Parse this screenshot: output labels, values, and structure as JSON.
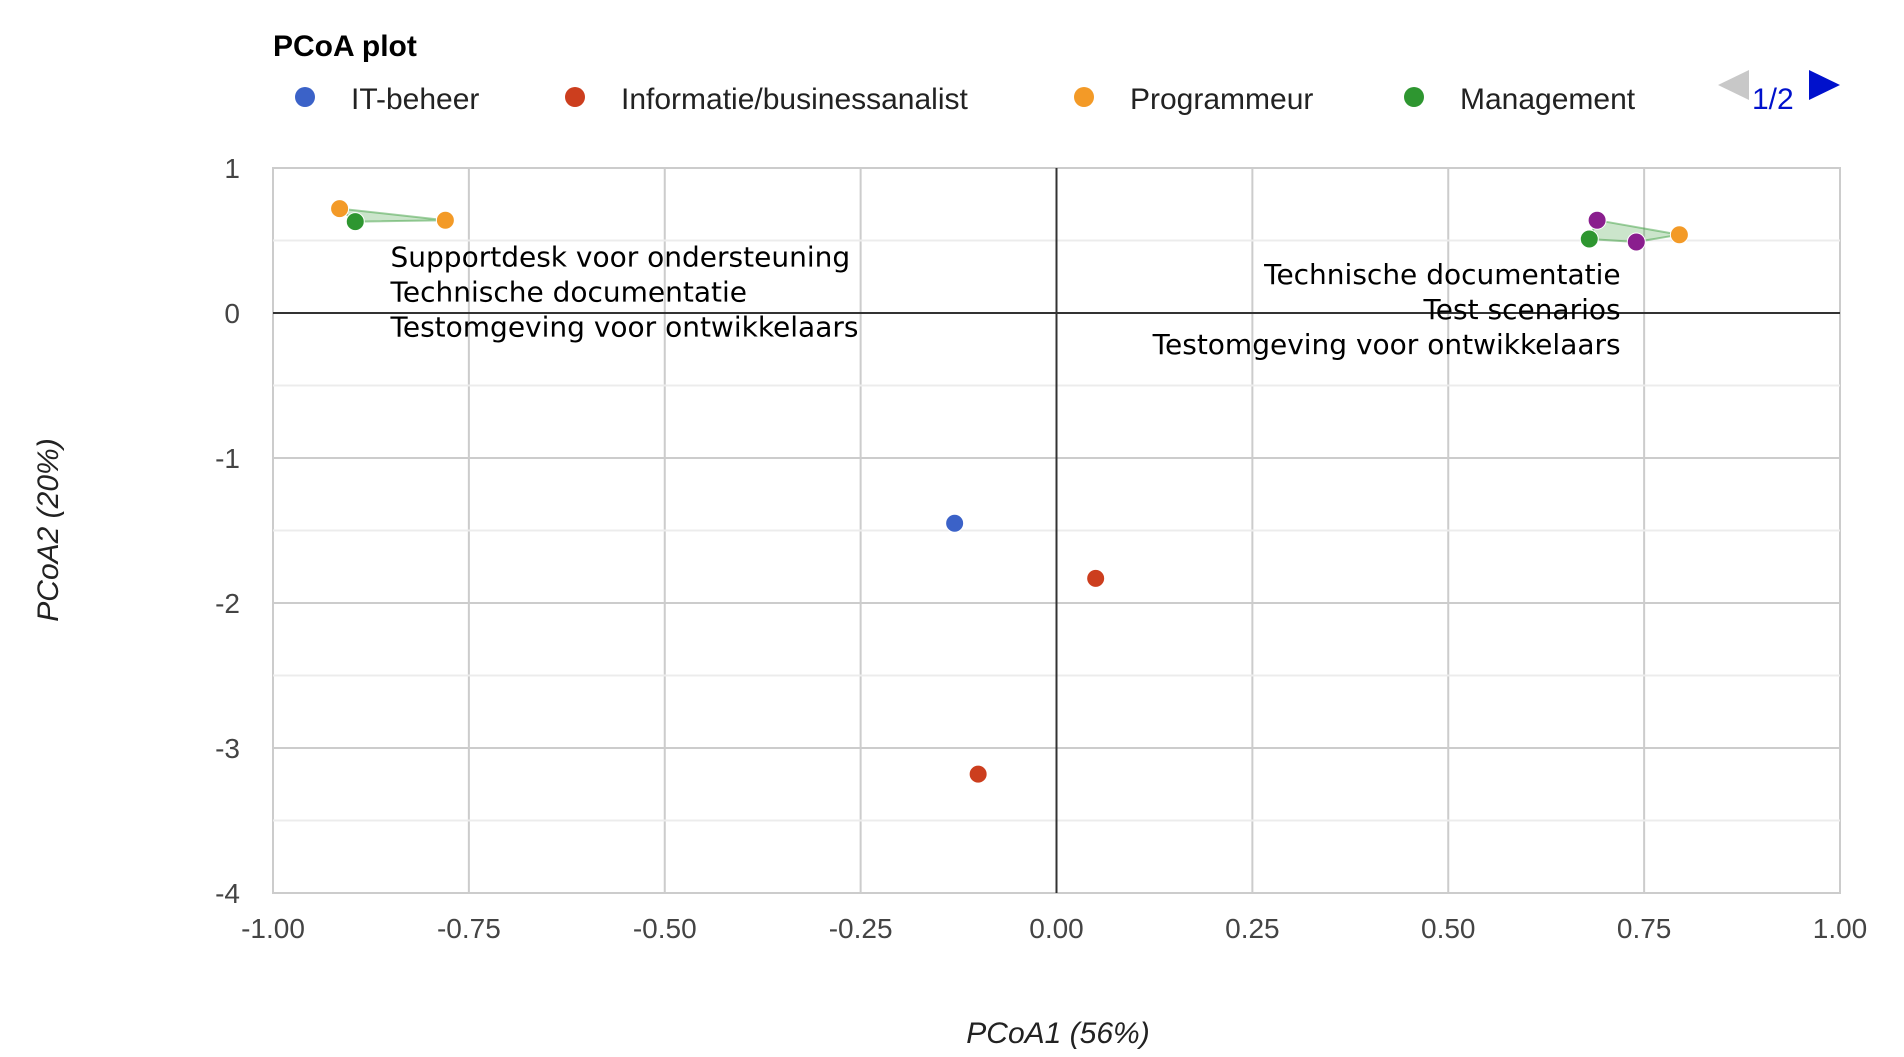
{
  "chart_data": {
    "type": "scatter",
    "title": "PCoA plot",
    "xlabel": "PCoA1 (56%)",
    "ylabel": "PCoA2 (20%)",
    "xlim": [
      -1.0,
      1.0
    ],
    "ylim": [
      -4,
      1
    ],
    "x_ticks": [
      -1.0,
      -0.75,
      -0.5,
      -0.25,
      0.0,
      0.25,
      0.5,
      0.75,
      1.0
    ],
    "x_tick_labels": [
      "-1.00",
      "-0.75",
      "-0.50",
      "-0.25",
      "0.00",
      "0.25",
      "0.50",
      "0.75",
      "1.00"
    ],
    "y_ticks": [
      1,
      0,
      -1,
      -2,
      -3,
      -4
    ],
    "y_tick_labels": [
      "1",
      "0",
      "-1",
      "-2",
      "-3",
      "-4"
    ],
    "grid": true,
    "legend_position": "top",
    "legend_page": "1/2",
    "series": [
      {
        "name": "IT-beheer",
        "color": "#3b62c8",
        "points": [
          {
            "x": -0.13,
            "y": -1.45
          }
        ]
      },
      {
        "name": "Informatie/businessanalist",
        "color": "#cc3e1e",
        "points": [
          {
            "x": 0.05,
            "y": -1.83
          },
          {
            "x": -0.1,
            "y": -3.18
          }
        ]
      },
      {
        "name": "Programmeur",
        "color": "#f39a27",
        "points": [
          {
            "x": -0.915,
            "y": 0.72
          },
          {
            "x": -0.78,
            "y": 0.64
          },
          {
            "x": 0.795,
            "y": 0.54
          }
        ]
      },
      {
        "name": "Management",
        "color": "#2e9630",
        "points": [
          {
            "x": -0.895,
            "y": 0.63
          },
          {
            "x": 0.68,
            "y": 0.51
          }
        ]
      },
      {
        "name": "",
        "color": "#8a1e8e",
        "points": [
          {
            "x": 0.69,
            "y": 0.64
          },
          {
            "x": 0.74,
            "y": 0.49
          }
        ]
      }
    ],
    "hulls": [
      {
        "color": "#2e9630",
        "points": [
          {
            "x": -0.915,
            "y": 0.72
          },
          {
            "x": -0.78,
            "y": 0.64
          },
          {
            "x": -0.895,
            "y": 0.63
          }
        ]
      },
      {
        "color": "#2e9630",
        "points": [
          {
            "x": 0.69,
            "y": 0.64
          },
          {
            "x": 0.795,
            "y": 0.54
          },
          {
            "x": 0.74,
            "y": 0.49
          },
          {
            "x": 0.68,
            "y": 0.51
          }
        ]
      }
    ],
    "annotations": [
      {
        "anchor_x": -0.85,
        "anchor_y": 0.32,
        "align": "start",
        "lines": [
          "Supportdesk voor ondersteuning",
          "Technische documentatie",
          "Testomgeving voor ontwikkelaars"
        ]
      },
      {
        "anchor_x": 0.72,
        "anchor_y": 0.2,
        "align": "end",
        "lines": [
          "Technische documentatie",
          "Test scenarios",
          "Testomgeving voor ontwikkelaars"
        ]
      }
    ]
  }
}
